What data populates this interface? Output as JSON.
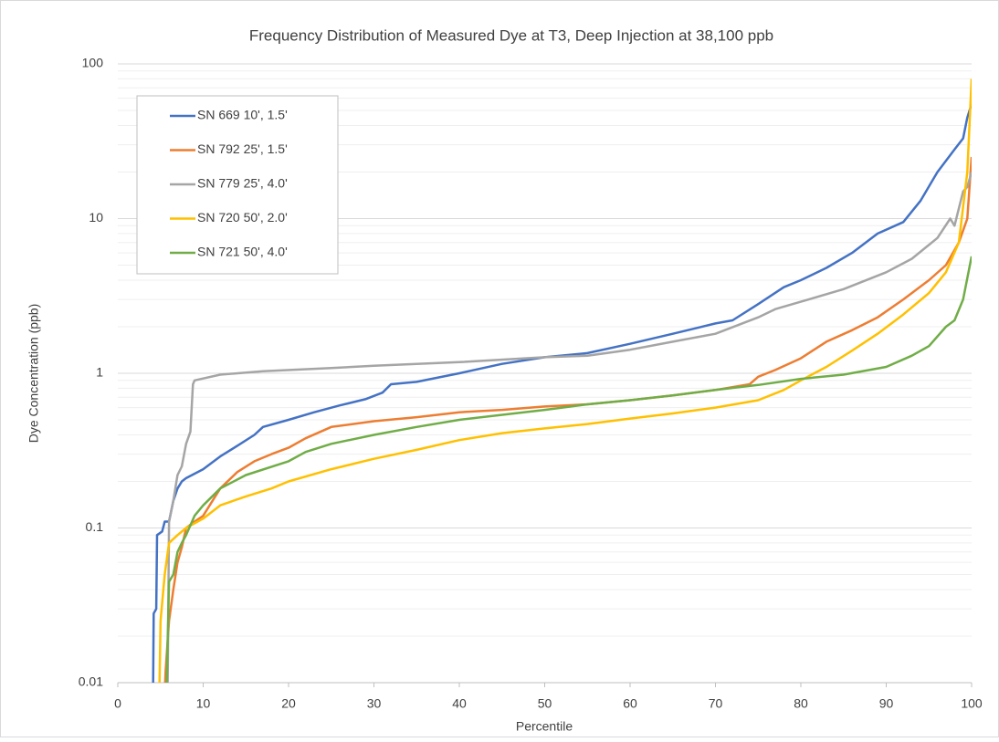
{
  "chart_data": {
    "type": "line",
    "title": "Frequency Distribution of Measured Dye at T3, Deep Injection at 38,100 ppb",
    "xlabel": "Percentile",
    "ylabel": "Dye Concentration (ppb)",
    "xlim": [
      0,
      100
    ],
    "xticks": [
      0,
      10,
      20,
      30,
      40,
      50,
      60,
      70,
      80,
      90,
      100
    ],
    "ylim": [
      0.01,
      100
    ],
    "yticks": [
      0.01,
      0.1,
      1,
      10,
      100
    ],
    "log_y": true,
    "grid": true,
    "minor_grid": true,
    "legend": "upper left",
    "series": [
      {
        "name": "SN 669 10', 1.5'",
        "color": "#4472c4",
        "x": [
          4.1,
          4.2,
          4.5,
          4.6,
          5.2,
          5.5,
          6,
          6.5,
          7,
          7.5,
          8,
          10,
          12,
          14,
          16,
          17,
          20,
          23,
          26,
          29,
          31,
          32,
          35,
          40,
          45,
          50,
          55,
          60,
          65,
          70,
          72,
          75,
          78,
          80,
          83,
          86,
          89,
          92,
          94,
          96,
          98,
          99,
          99.5,
          100
        ],
        "values": [
          0.005,
          0.028,
          0.03,
          0.09,
          0.095,
          0.11,
          0.11,
          0.15,
          0.18,
          0.2,
          0.21,
          0.24,
          0.29,
          0.34,
          0.4,
          0.45,
          0.5,
          0.56,
          0.62,
          0.68,
          0.75,
          0.85,
          0.88,
          1.0,
          1.15,
          1.27,
          1.35,
          1.55,
          1.8,
          2.1,
          2.2,
          2.8,
          3.6,
          4.0,
          4.8,
          6,
          8,
          9.5,
          13,
          20,
          28,
          33,
          45,
          55
        ]
      },
      {
        "name": "SN 792 25', 1.5'",
        "color": "#ed7d31",
        "x": [
          5.3,
          5.6,
          6,
          6.5,
          7,
          7.5,
          8,
          9,
          10,
          12,
          14,
          16,
          18,
          20,
          22,
          25,
          30,
          35,
          40,
          45,
          50,
          55,
          60,
          65,
          70,
          74,
          75,
          77,
          80,
          83,
          86,
          89,
          92,
          95,
          97,
          98.5,
          99.5,
          100
        ],
        "values": [
          0.005,
          0.012,
          0.025,
          0.04,
          0.06,
          0.075,
          0.1,
          0.11,
          0.12,
          0.18,
          0.23,
          0.27,
          0.3,
          0.33,
          0.38,
          0.45,
          0.49,
          0.52,
          0.56,
          0.58,
          0.61,
          0.63,
          0.67,
          0.72,
          0.78,
          0.85,
          0.95,
          1.05,
          1.25,
          1.6,
          1.9,
          2.3,
          3,
          4,
          5,
          7,
          10,
          25
        ]
      },
      {
        "name": "SN 779 25', 4.0'",
        "color": "#a5a5a5",
        "x": [
          5.8,
          6,
          6.5,
          7,
          7.5,
          8,
          8.5,
          8.8,
          9,
          12,
          17,
          25,
          30,
          40,
          50,
          55,
          60,
          65,
          70,
          75,
          77,
          80,
          85,
          90,
          93,
          96,
          97.5,
          98,
          99,
          99.5,
          100
        ],
        "values": [
          0.005,
          0.11,
          0.15,
          0.22,
          0.25,
          0.35,
          0.42,
          0.85,
          0.9,
          0.98,
          1.03,
          1.08,
          1.12,
          1.18,
          1.27,
          1.3,
          1.42,
          1.6,
          1.8,
          2.3,
          2.6,
          2.9,
          3.5,
          4.5,
          5.5,
          7.5,
          10,
          9,
          15,
          16,
          20
        ]
      },
      {
        "name": "SN 720 50', 2.0'",
        "color": "#ffc000",
        "x": [
          4.8,
          5,
          5.5,
          6,
          7,
          8,
          10,
          12,
          15,
          18,
          20,
          25,
          30,
          35,
          40,
          45,
          50,
          55,
          60,
          65,
          70,
          75,
          78,
          80,
          83,
          86,
          89,
          92,
          95,
          97,
          98.5,
          99.5,
          100
        ],
        "values": [
          0.005,
          0.025,
          0.05,
          0.08,
          0.09,
          0.1,
          0.115,
          0.14,
          0.16,
          0.18,
          0.2,
          0.24,
          0.28,
          0.32,
          0.37,
          0.41,
          0.44,
          0.47,
          0.51,
          0.55,
          0.6,
          0.67,
          0.78,
          0.9,
          1.1,
          1.4,
          1.8,
          2.4,
          3.3,
          4.5,
          7,
          20,
          80
        ]
      },
      {
        "name": "SN 721 50', 4.0'",
        "color": "#70ad47",
        "x": [
          5.6,
          6,
          6.5,
          7,
          7.5,
          8,
          9,
          10,
          12,
          15,
          20,
          22,
          25,
          30,
          35,
          40,
          50,
          55,
          60,
          65,
          70,
          75,
          80,
          85,
          90,
          93,
          95,
          97,
          98,
          99,
          100
        ],
        "values": [
          0.005,
          0.045,
          0.05,
          0.07,
          0.08,
          0.09,
          0.12,
          0.14,
          0.18,
          0.22,
          0.27,
          0.31,
          0.35,
          0.4,
          0.45,
          0.5,
          0.58,
          0.63,
          0.67,
          0.72,
          0.78,
          0.84,
          0.92,
          0.98,
          1.1,
          1.3,
          1.5,
          2,
          2.2,
          3,
          5.7
        ]
      }
    ]
  }
}
